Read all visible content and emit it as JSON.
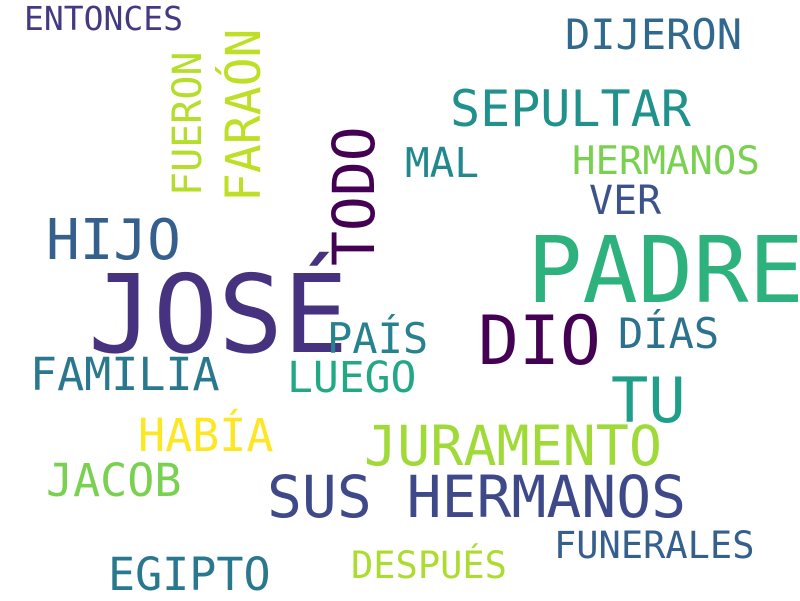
{
  "cloud": {
    "words": [
      {
        "text": "ENTONCES",
        "color": "#443983"
      },
      {
        "text": "FUERON",
        "color": "#b5de2b"
      },
      {
        "text": "FARAÓN",
        "color": "#bddf26"
      },
      {
        "text": "DIJERON",
        "color": "#31688e"
      },
      {
        "text": "SEPULTAR",
        "color": "#21918c"
      },
      {
        "text": "TODO",
        "color": "#440154"
      },
      {
        "text": "MAL",
        "color": "#23888e"
      },
      {
        "text": "HERMANOS",
        "color": "#7ad151"
      },
      {
        "text": "VER",
        "color": "#3b528b"
      },
      {
        "text": "HIJO",
        "color": "#35608d"
      },
      {
        "text": "PADRE",
        "color": "#2db27d"
      },
      {
        "text": "JOSÉ",
        "color": "#46327e"
      },
      {
        "text": "PAÍS",
        "color": "#26828e"
      },
      {
        "text": "DIO",
        "color": "#440154"
      },
      {
        "text": "DÍAS",
        "color": "#2c728e"
      },
      {
        "text": "FAMILIA",
        "color": "#2a788e"
      },
      {
        "text": "LUEGO",
        "color": "#22a884"
      },
      {
        "text": "TU",
        "color": "#1f9e89"
      },
      {
        "text": "HABÍA",
        "color": "#fde725"
      },
      {
        "text": "JURAMENTO",
        "color": "#a0da39"
      },
      {
        "text": "JACOB",
        "color": "#7ad151"
      },
      {
        "text": "SUS HERMANOS",
        "color": "#3e4989"
      },
      {
        "text": "EGIPTO",
        "color": "#2a788e"
      },
      {
        "text": "DESPUÉS",
        "color": "#addc30"
      },
      {
        "text": "FUNERALES",
        "color": "#355f8d"
      }
    ]
  }
}
